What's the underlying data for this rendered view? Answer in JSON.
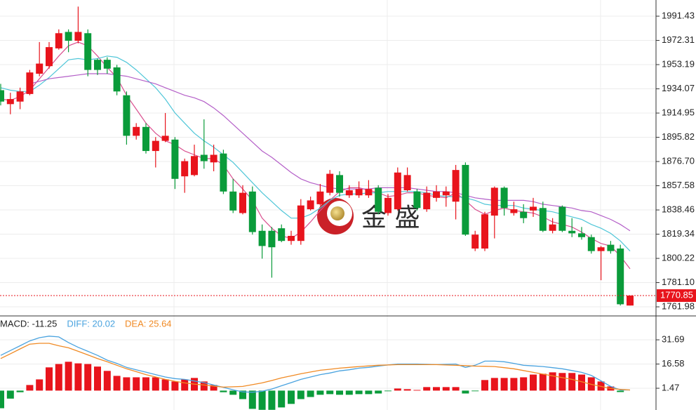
{
  "chart_data": [
    {
      "type": "candlestick",
      "ylim": [
        1754.8,
        2004.2
      ],
      "yticks": [
        1991.43,
        1972.31,
        1953.19,
        1934.07,
        1914.95,
        1895.82,
        {
          "value": 1876.7,
          "label": "1876.70"
        },
        1857.58,
        1838.46,
        1819.34,
        1800.22,
        {
          "value": 1781.1,
          "label": "1781.10"
        },
        1761.98
      ],
      "grid": true,
      "up_color": "#e8141c",
      "down_color": "#0a9b3a",
      "open": [
        1933,
        1922,
        1924,
        1930,
        1946,
        1952,
        1966,
        1979,
        1972,
        1978,
        1957,
        1957,
        1951,
        1929,
        1897,
        1904,
        1885,
        1893,
        1894,
        1865,
        1866,
        1882,
        1876,
        1883,
        1853,
        1836,
        1853,
        1822,
        1822,
        1824,
        1814,
        1814,
        1839,
        1843,
        1852,
        1866,
        1850,
        1850,
        1850,
        1856,
        1836,
        1839,
        1854,
        1853,
        1839,
        1848,
        1850,
        1845,
        1874,
        1808,
        1808,
        1834,
        1856,
        1836,
        1837,
        1838,
        1840,
        1822,
        1841,
        1822,
        1820,
        1817,
        1806,
        1811,
        1808,
        1763
      ],
      "high": [
        1938,
        1931,
        1935,
        1949,
        1971,
        1971,
        1981,
        1981,
        1999,
        1981,
        1958,
        1959,
        1953,
        1932,
        1907,
        1907,
        1896,
        1915,
        1896,
        1879,
        1890,
        1910,
        1890,
        1886,
        1863,
        1858,
        1857,
        1827,
        1825,
        1827,
        1822,
        1847,
        1849,
        1859,
        1870,
        1869,
        1858,
        1861,
        1862,
        1858,
        1851,
        1872,
        1872,
        1855,
        1857,
        1858,
        1857,
        1874,
        1876,
        1822,
        1837,
        1857,
        1857,
        1845,
        1843,
        1848,
        1845,
        1832,
        1842,
        1832,
        1825,
        1819,
        1810,
        1814,
        1811,
        1771
      ],
      "low": [
        1921,
        1914,
        1918,
        1929,
        1944,
        1950,
        1965,
        1963,
        1970,
        1944,
        1945,
        1946,
        1929,
        1890,
        1894,
        1883,
        1872,
        1892,
        1855,
        1852,
        1865,
        1871,
        1869,
        1851,
        1836,
        1835,
        1819,
        1800,
        1785,
        1813,
        1811,
        1811,
        1838,
        1842,
        1850,
        1849,
        1848,
        1848,
        1848,
        1835,
        1834,
        1838,
        1853,
        1838,
        1837,
        1845,
        1841,
        1831,
        1818,
        1806,
        1806,
        1816,
        1834,
        1834,
        1828,
        1833,
        1821,
        1820,
        1821,
        1817,
        1815,
        1804,
        1783,
        1804,
        1763,
        1763
      ],
      "close": [
        1924,
        1926,
        1932,
        1947,
        1954,
        1967,
        1978,
        1972,
        1979,
        1949,
        1949,
        1950,
        1932,
        1897,
        1904,
        1885,
        1893,
        1897,
        1863,
        1877,
        1881,
        1877,
        1882,
        1853,
        1838,
        1852,
        1821,
        1810,
        1809,
        1814,
        1818,
        1842,
        1846,
        1853,
        1867,
        1852,
        1854,
        1855,
        1855,
        1837,
        1848,
        1868,
        1866,
        1840,
        1852,
        1853,
        1853,
        1870,
        1819,
        1819,
        1835,
        1856,
        1840,
        1839,
        1832,
        1841,
        1822,
        1827,
        1822,
        1820,
        1817,
        1806,
        1809,
        1806,
        1764,
        1770.85
      ],
      "lines": [
        {
          "color": "#d9508f",
          "values": [
            1926,
            1925,
            1928,
            1933,
            1942,
            1951,
            1960,
            1968,
            1971,
            1968,
            1960,
            1951,
            1943,
            1929,
            1918,
            1907,
            1899,
            1893,
            1890,
            1885,
            1882,
            1879,
            1879,
            1874,
            1863,
            1855,
            1846,
            1832,
            1824,
            1818,
            1816,
            1821,
            1829,
            1838,
            1846,
            1853,
            1856,
            1856,
            1854,
            1852,
            1849,
            1850,
            1852,
            1852,
            1850,
            1849,
            1848,
            1852,
            1846,
            1839,
            1835,
            1838,
            1840,
            1838,
            1837,
            1836,
            1833,
            1829,
            1827,
            1825,
            1821,
            1816,
            1812,
            1810,
            1802,
            1792
          ]
        },
        {
          "color": "#4fc6d8",
          "values": [
            1935,
            1933,
            1932,
            1932,
            1937,
            1943,
            1950,
            1957,
            1958,
            1957,
            1958,
            1960,
            1959,
            1955,
            1949,
            1942,
            1935,
            1926,
            1915,
            1907,
            1899,
            1893,
            1888,
            1882,
            1876,
            1868,
            1860,
            1852,
            1845,
            1838,
            1832,
            1832,
            1835,
            1840,
            1846,
            1850,
            1851,
            1851,
            1852,
            1852,
            1853,
            1853,
            1853,
            1853,
            1852,
            1850,
            1849,
            1849,
            1848,
            1846,
            1843,
            1842,
            1842,
            1842,
            1840,
            1839,
            1838,
            1837,
            1835,
            1833,
            1831,
            1827,
            1824,
            1820,
            1814,
            1806
          ]
        },
        {
          "color": "#b45fc8",
          "values": [
            null,
            null,
            null,
            1938,
            1940,
            1942,
            1943,
            1944,
            1945,
            1946,
            1946,
            1946,
            1945,
            1944,
            1942,
            1940,
            1938,
            1935,
            1932,
            1929,
            1927,
            1924,
            1919,
            1913,
            1906,
            1899,
            1892,
            1885,
            1880,
            1874,
            1868,
            1863,
            1860,
            1858,
            1856,
            1855,
            1855,
            1855,
            1855,
            1856,
            1856,
            1856,
            1856,
            1855,
            1854,
            1853,
            1853,
            1852,
            1850,
            1848,
            1847,
            1846,
            1846,
            1846,
            1846,
            1845,
            1843,
            1842,
            1841,
            1840,
            1838,
            1837,
            1834,
            1831,
            1827,
            1822
          ]
        }
      ],
      "last_price": 1770.85,
      "watermark": "金 盛"
    },
    {
      "type": "macd",
      "ylim": [
        -12.1,
        46.6
      ],
      "yticks": [
        31.69,
        16.58,
        1.47
      ],
      "up_color": "#e8141c",
      "down_color": "#0a9b3a",
      "legend": [
        {
          "text": "MACD: -11.25",
          "color": "#222"
        },
        {
          "text": "DIFF: 20.02",
          "color": "#4aa3df"
        },
        {
          "text": "DEA: 25.64",
          "color": "#f08a24"
        }
      ],
      "histogram": [
        -11,
        -5,
        -1,
        3.5,
        7,
        14.5,
        16.6,
        18,
        17,
        16.6,
        15,
        12.3,
        9.2,
        8.3,
        8.3,
        8.3,
        8.3,
        7,
        5.7,
        7,
        7.9,
        5.7,
        3.5,
        -1,
        -2.6,
        -5.3,
        -11.4,
        -12,
        -12,
        -10.5,
        -8.3,
        -5.3,
        -4,
        -2.6,
        -2.2,
        -2.6,
        -2.6,
        -2.2,
        -2.2,
        -1.8,
        -0.4,
        1.3,
        0.9,
        0.4,
        2.2,
        2.2,
        2.2,
        2.2,
        -1.8,
        -0.4,
        6.6,
        7.9,
        7.9,
        7.9,
        8.3,
        10,
        10.5,
        11.4,
        11,
        11,
        10,
        8.3,
        5.7,
        2.6,
        -0.9,
        null
      ],
      "series": [
        {
          "color": "#4aa3df",
          "values": [
            22,
            25,
            28,
            31,
            33,
            34,
            33.5,
            30,
            27,
            24.5,
            22,
            19,
            17,
            14.5,
            13,
            11.5,
            10,
            8.5,
            7.5,
            7,
            6,
            5,
            3.5,
            2,
            0.5,
            -0.8,
            -1,
            -0.4,
            1,
            3,
            5,
            7,
            8.5,
            10,
            11,
            12.3,
            13,
            14,
            14.5,
            15.3,
            16,
            16.6,
            16.6,
            16.6,
            16.4,
            16.2,
            16.4,
            16.6,
            14.5,
            15.8,
            18.4,
            18.4,
            18,
            17,
            15.8,
            15.4,
            15,
            14.3,
            13.6,
            12.5,
            11.4,
            9.5,
            6.1,
            2.6,
            0.4,
            0.4
          ]
        },
        {
          "color": "#f08a24",
          "values": [
            20,
            23,
            26,
            29,
            29.5,
            29.5,
            28,
            26.7,
            24.5,
            22.3,
            20,
            18,
            15.8,
            13.6,
            11.8,
            10,
            8.5,
            7,
            5.8,
            4.8,
            4,
            3.5,
            2.8,
            2.2,
            2.4,
            2.6,
            3.7,
            4.8,
            6.3,
            7.9,
            9.2,
            10.5,
            11.6,
            12.7,
            13.3,
            14,
            14.5,
            15,
            15.4,
            15.8,
            16,
            16.2,
            16.2,
            16.2,
            16.2,
            16.2,
            16,
            15.8,
            15.6,
            15.3,
            15.2,
            15,
            14.3,
            13.6,
            12.5,
            11.4,
            10.3,
            9.2,
            8.1,
            7,
            5.5,
            3.9,
            2.6,
            1.3,
            0.8,
            0.4
          ]
        }
      ]
    }
  ]
}
